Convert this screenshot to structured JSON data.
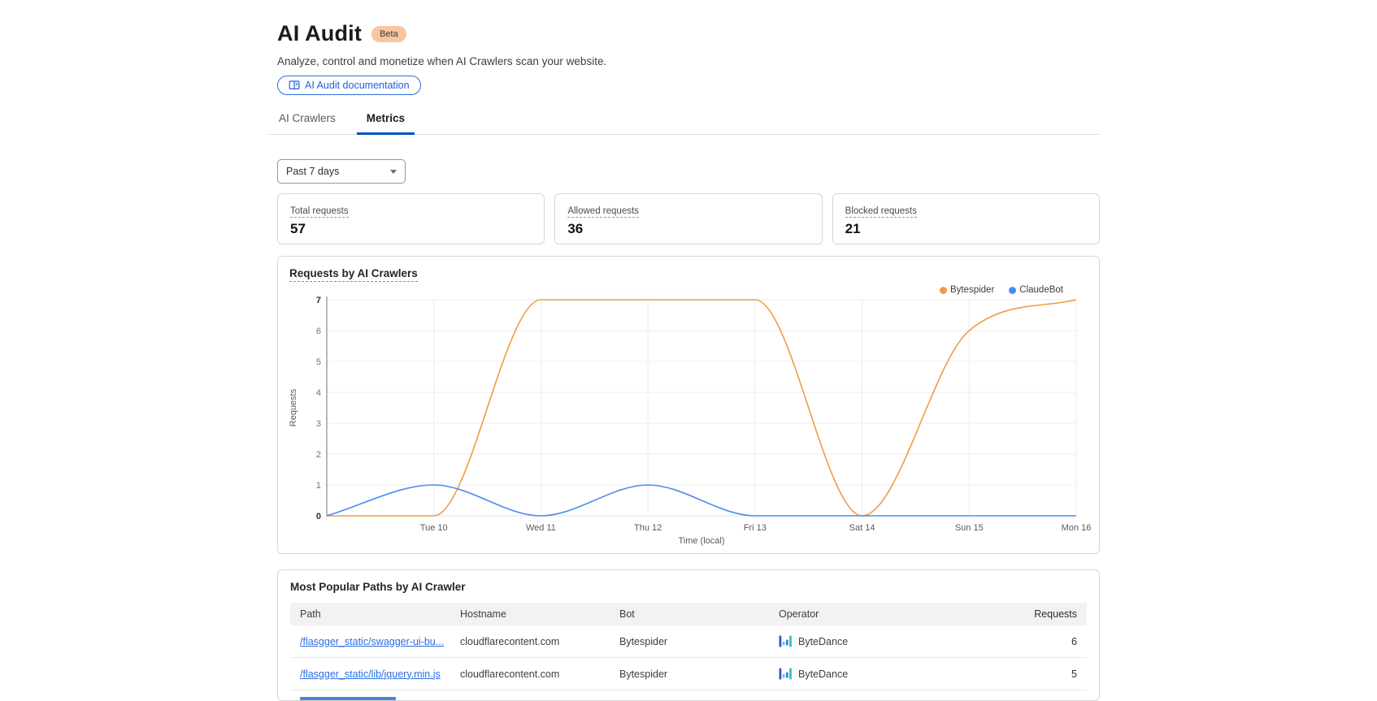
{
  "page": {
    "title": "AI Audit",
    "badge": "Beta",
    "subtitle": "Analyze, control and monetize when AI Crawlers scan your website.",
    "doc_button": "AI Audit documentation"
  },
  "tabs": [
    {
      "label": "AI Crawlers",
      "active": false
    },
    {
      "label": "Metrics",
      "active": true
    }
  ],
  "filters": {
    "time_range": "Past 7 days"
  },
  "stats": [
    {
      "label": "Total requests",
      "value": "57"
    },
    {
      "label": "Allowed requests",
      "value": "36"
    },
    {
      "label": "Blocked requests",
      "value": "21"
    }
  ],
  "chart_data": {
    "type": "line",
    "title": "Requests by AI Crawlers",
    "xlabel": "Time (local)",
    "ylabel": "Requests",
    "xlim": [
      0,
      7
    ],
    "ylim": [
      0,
      7
    ],
    "y_ticks": [
      0,
      1,
      2,
      3,
      4,
      5,
      6,
      7
    ],
    "x_tick_positions": [
      1,
      2,
      3,
      4,
      5,
      6,
      7
    ],
    "x_tick_labels": [
      "Tue 10",
      "Wed 11",
      "Thu 12",
      "Fri 13",
      "Sat 14",
      "Sun 15",
      "Mon 16"
    ],
    "grid": true,
    "legend_position": "top-right",
    "series": [
      {
        "name": "Bytespider",
        "color": "#f29b43",
        "x": [
          0,
          1,
          2,
          3,
          4,
          5,
          6,
          7
        ],
        "values": [
          0,
          0,
          7,
          7,
          7,
          0,
          6,
          7
        ]
      },
      {
        "name": "ClaudeBot",
        "color": "#4c8cf0",
        "x": [
          0,
          1,
          2,
          3,
          4,
          5,
          6,
          7
        ],
        "values": [
          0,
          1,
          0,
          1,
          0,
          0,
          0,
          0
        ]
      }
    ]
  },
  "table": {
    "title": "Most Popular Paths by AI Crawler",
    "columns": [
      "Path",
      "Hostname",
      "Bot",
      "Operator",
      "Requests"
    ],
    "rows": [
      {
        "path": "/flasgger_static/swagger-ui-bu...",
        "hostname": "cloudflarecontent.com",
        "bot": "Bytespider",
        "operator": "ByteDance",
        "requests": "6"
      },
      {
        "path": "/flasgger_static/lib/jquery.min.js",
        "hostname": "cloudflarecontent.com",
        "bot": "Bytespider",
        "operator": "ByteDance",
        "requests": "5"
      }
    ],
    "partial_third_row": true
  },
  "colors": {
    "accent_blue": "#2c6ce0",
    "tab_underline": "#0051c3",
    "series_orange": "#f29b43",
    "series_blue": "#4c8cf0",
    "badge_bg": "#f8c59e"
  }
}
